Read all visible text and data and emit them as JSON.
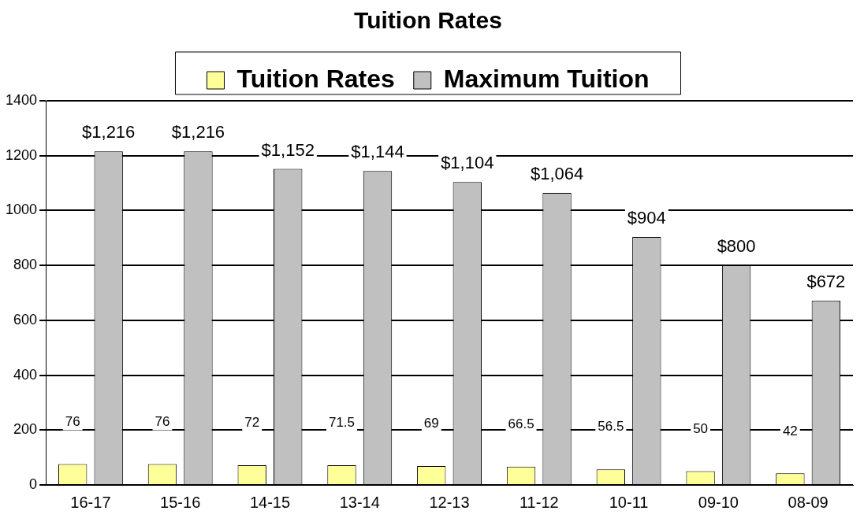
{
  "chart_data": {
    "type": "bar",
    "title": "Tuition Rates",
    "categories": [
      "16-17",
      "15-16",
      "14-15",
      "13-14",
      "12-13",
      "11-12",
      "10-11",
      "09-10",
      "08-09"
    ],
    "series": [
      {
        "name": "Tuition Rates",
        "color": "#ffff99",
        "values": [
          76,
          76,
          72,
          71.5,
          69,
          66.5,
          56.5,
          50,
          42
        ],
        "value_labels": [
          "76",
          "76",
          "72",
          "71.5",
          "69",
          "66.5",
          "56.5",
          "50",
          "42"
        ]
      },
      {
        "name": "Maximum Tuition",
        "color": "#c0c0c0",
        "values": [
          1216,
          1216,
          1152,
          1144,
          1104,
          1064,
          904,
          800,
          672
        ],
        "value_labels": [
          "$1,216",
          "$1,216",
          "$1,152",
          "$1,144",
          "$1,104",
          "$1,064",
          "$904",
          "$800",
          "$672"
        ]
      }
    ],
    "ylim": [
      0,
      1400
    ],
    "yticks": [
      0,
      200,
      400,
      600,
      800,
      1000,
      1200,
      1400
    ],
    "grid": "y",
    "legend": "top"
  }
}
